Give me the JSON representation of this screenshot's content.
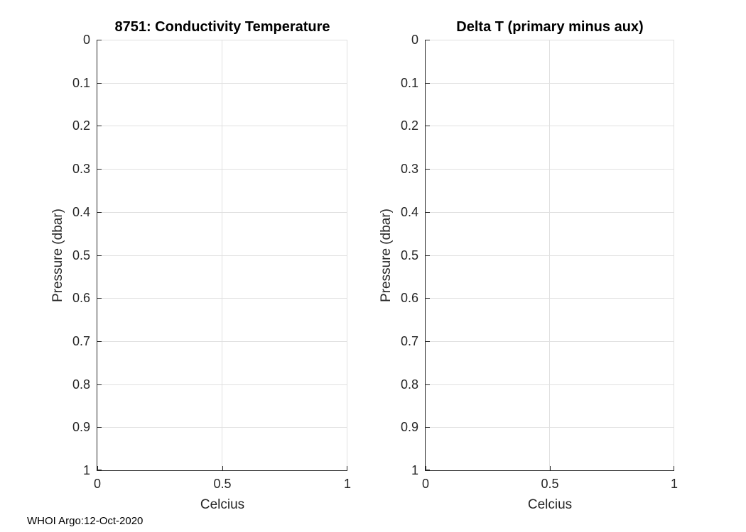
{
  "figure": {
    "footer": "WHOI Argo:12-Oct-2020",
    "colors": {
      "background": "#ffffff",
      "axis": "#262626",
      "grid": "#e0e0e0",
      "title": "#000000"
    }
  },
  "chart_data": [
    {
      "type": "line",
      "title": "8751: Conductivity Temperature",
      "xlabel": "Celcius",
      "ylabel": "Pressure (dbar)",
      "xlim": [
        0,
        1
      ],
      "ylim": [
        0,
        1
      ],
      "y_axis_direction": "reverse",
      "x_ticks": [
        0,
        0.5,
        1
      ],
      "y_ticks": [
        0,
        0.1,
        0.2,
        0.3,
        0.4,
        0.5,
        0.6,
        0.7,
        0.8,
        0.9,
        1
      ],
      "grid": true,
      "legend": null,
      "series": []
    },
    {
      "type": "line",
      "title": "Delta T (primary minus aux)",
      "xlabel": "Celcius",
      "ylabel": "Pressure (dbar)",
      "xlim": [
        0,
        1
      ],
      "ylim": [
        0,
        1
      ],
      "y_axis_direction": "reverse",
      "x_ticks": [
        0,
        0.5,
        1
      ],
      "y_ticks": [
        0,
        0.1,
        0.2,
        0.3,
        0.4,
        0.5,
        0.6,
        0.7,
        0.8,
        0.9,
        1
      ],
      "grid": true,
      "legend": null,
      "series": []
    }
  ]
}
